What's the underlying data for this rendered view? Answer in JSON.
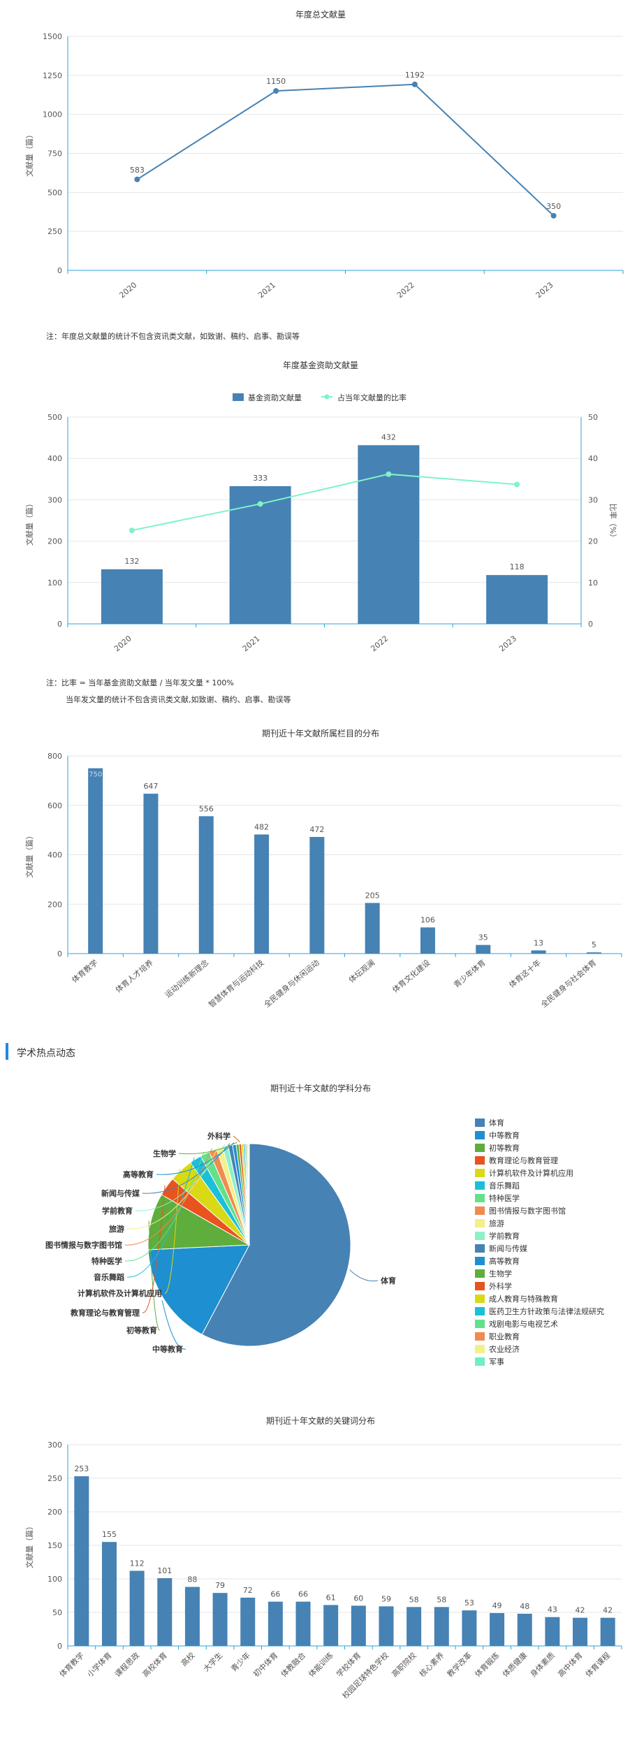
{
  "notes": {
    "total_note": "注：年度总文献量的统计不包含资讯类文献，如致谢、稿约、启事、勘误等",
    "fund_note_line1": "注：比率 = 当年基金资助文献量 / 当年发文量 * 100%",
    "fund_note_line2": "当年发文量的统计不包含资讯类文献,如致谢、稿约、启事、勘误等"
  },
  "section": {
    "title": "学术热点动态"
  },
  "colors": {
    "primary": "#4682b4",
    "line": "#7ff3c8",
    "axis": "#2ca3d6",
    "grid": "#e5e5e5",
    "section_accent": "#1e88e5"
  },
  "chart_data": [
    {
      "id": "annual-total",
      "type": "line",
      "title": "年度总文献量",
      "ylabel": "文献量（篇）",
      "x": [
        "2020",
        "2021",
        "2022",
        "2023"
      ],
      "values": [
        583,
        1150,
        1192,
        350
      ],
      "ylim": [
        0,
        1500
      ],
      "yticks": [
        0,
        250,
        500,
        750,
        1000,
        1250,
        1500
      ],
      "grid": true
    },
    {
      "id": "annual-fund",
      "type": "bar",
      "title": "年度基金资助文献量",
      "ylabel": "文献量（篇）",
      "y2label": "比率（%）",
      "x": [
        "2020",
        "2021",
        "2022",
        "2023"
      ],
      "series": [
        {
          "name": "基金资助文献量",
          "type": "bar",
          "values": [
            132,
            333,
            432,
            118
          ]
        },
        {
          "name": "占当年文献量的比率",
          "type": "line",
          "values": [
            22.6,
            29.0,
            36.2,
            33.7
          ]
        }
      ],
      "ylim": [
        0,
        500
      ],
      "yticks": [
        0,
        100,
        200,
        300,
        400,
        500
      ],
      "y2lim": [
        0,
        50
      ],
      "y2ticks": [
        0,
        10,
        20,
        30,
        40,
        50
      ],
      "legend": "top"
    },
    {
      "id": "column-dist",
      "type": "bar",
      "title": "期刊近十年文献所属栏目的分布",
      "ylabel": "文献量（篇）",
      "categories": [
        "体育教学",
        "体育人才培养",
        "运动训练新理念",
        "智慧体育与运动科技",
        "全民健身与休闲运动",
        "体坛观澜",
        "体育文化建设",
        "青少年体育",
        "体育这十年",
        "全民健身与社会体育"
      ],
      "values": [
        750,
        647,
        556,
        482,
        472,
        205,
        106,
        35,
        13,
        5
      ],
      "ylim": [
        0,
        800
      ],
      "yticks": [
        0,
        200,
        400,
        600,
        800
      ]
    },
    {
      "id": "subject-dist",
      "type": "pie",
      "title": "期刊近十年文献的学科分布",
      "labels": [
        "体育",
        "中等教育",
        "初等教育",
        "教育理论与教育管理",
        "计算机软件及计算机应用",
        "音乐舞蹈",
        "特种医学",
        "图书情报与数字图书馆",
        "旅游",
        "学前教育",
        "新闻与传媒",
        "高等教育",
        "生物学",
        "外科学",
        "成人教育与特殊教育",
        "医药卫生方针政策与法律法规研究",
        "戏剧电影与电视艺术",
        "职业教育",
        "农业经济",
        "军事"
      ],
      "values": [
        1820,
        520,
        285,
        95,
        120,
        60,
        48,
        38,
        32,
        28,
        22,
        18,
        14,
        12,
        10,
        8,
        7,
        6,
        5,
        4
      ],
      "colors": [
        "#4682b4",
        "#1e8fd0",
        "#5fad3c",
        "#e8531e",
        "#d9d915",
        "#1bbfd8",
        "#63e08a",
        "#f08b50",
        "#f3f08a",
        "#8ef0c8",
        "#4682b4",
        "#1e8fd0",
        "#5fad3c",
        "#e8531e",
        "#d9d915",
        "#1bbfd8",
        "#63e08a",
        "#f08b50",
        "#f3f08a",
        "#6ff0c0"
      ],
      "shown_labels": [
        "体育",
        "中等教育",
        "初等教育",
        "教育理论与教育管理",
        "计算机软件及计算机应用",
        "音乐舞蹈",
        "特种医学",
        "图书情报与数字图书馆",
        "旅游",
        "学前教育",
        "新闻与传媒",
        "高等教育",
        "生物学",
        "外科学"
      ],
      "legend": "right"
    },
    {
      "id": "keyword-dist",
      "type": "bar",
      "title": "期刊近十年文献的关键词分布",
      "ylabel": "文献量（篇）",
      "categories": [
        "体育教学",
        "小学体育",
        "课程思政",
        "高校体育",
        "高校",
        "大学生",
        "青少年",
        "初中体育",
        "体教融合",
        "体能训练",
        "学校体育",
        "校园足球特色学校",
        "高职院校",
        "核心素养",
        "教学改革",
        "体育锻炼",
        "体质健康",
        "身体素质",
        "高中体育",
        "体育课程"
      ],
      "values": [
        253,
        155,
        112,
        101,
        88,
        79,
        72,
        66,
        66,
        61,
        60,
        59,
        58,
        58,
        53,
        49,
        48,
        43,
        42,
        42
      ],
      "ylim": [
        0,
        300
      ],
      "yticks": [
        0,
        50,
        100,
        150,
        200,
        250,
        300
      ]
    }
  ]
}
